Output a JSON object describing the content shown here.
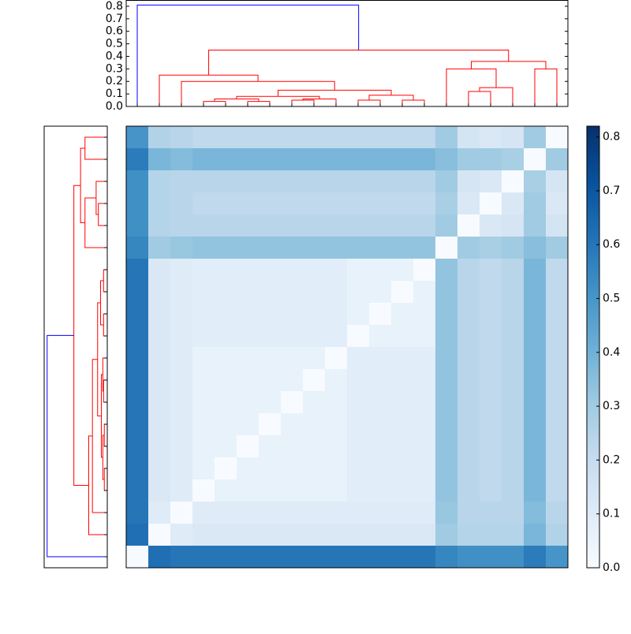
{
  "chart_data": {
    "type": "clustered-heatmap",
    "colormap": [
      "#f7fbff",
      "#deebf7",
      "#c6dbef",
      "#9ecae1",
      "#6baed6",
      "#4292c6",
      "#2171b5",
      "#08519c",
      "#08306b"
    ],
    "clim": [
      0,
      0.82
    ],
    "cticks": [
      {
        "value": 0,
        "label": "0.0"
      },
      {
        "value": 0.1,
        "label": "0.1"
      },
      {
        "value": 0.2,
        "label": "0.2"
      },
      {
        "value": 0.3,
        "label": "0.3"
      },
      {
        "value": 0.4,
        "label": "0.4"
      },
      {
        "value": 0.5,
        "label": "0.5"
      },
      {
        "value": 0.6,
        "label": "0.6"
      },
      {
        "value": 0.7,
        "label": "0.7"
      },
      {
        "value": 0.8,
        "label": "0.8"
      }
    ],
    "ylim": [
      0,
      0.85
    ],
    "yticks": [
      {
        "value": 0,
        "label": "0.0"
      },
      {
        "value": 0.1,
        "label": "0.1"
      },
      {
        "value": 0.2,
        "label": "0.2"
      },
      {
        "value": 0.3,
        "label": "0.3"
      },
      {
        "value": 0.4,
        "label": "0.4"
      },
      {
        "value": 0.5,
        "label": "0.5"
      },
      {
        "value": 0.6,
        "label": "0.6"
      },
      {
        "value": 0.7,
        "label": "0.7"
      },
      {
        "value": 0.8,
        "label": "0.8"
      }
    ],
    "matrix": [
      [
        0.5,
        0.26,
        0.24,
        0.22,
        0.22,
        0.22,
        0.22,
        0.22,
        0.22,
        0.22,
        0.22,
        0.22,
        0.22,
        0.22,
        0.3,
        0.15,
        0.12,
        0.14,
        0.3,
        0
      ],
      [
        0.58,
        0.38,
        0.36,
        0.38,
        0.38,
        0.38,
        0.38,
        0.38,
        0.38,
        0.38,
        0.38,
        0.38,
        0.38,
        0.38,
        0.35,
        0.3,
        0.3,
        0.28,
        0,
        0.3
      ],
      [
        0.52,
        0.25,
        0.24,
        0.24,
        0.24,
        0.24,
        0.24,
        0.24,
        0.24,
        0.24,
        0.24,
        0.24,
        0.24,
        0.24,
        0.3,
        0.14,
        0.12,
        0,
        0.28,
        0.14
      ],
      [
        0.52,
        0.25,
        0.24,
        0.22,
        0.22,
        0.22,
        0.22,
        0.22,
        0.22,
        0.22,
        0.22,
        0.22,
        0.22,
        0.22,
        0.28,
        0.12,
        0,
        0.12,
        0.3,
        0.12
      ],
      [
        0.52,
        0.25,
        0.24,
        0.24,
        0.24,
        0.24,
        0.24,
        0.24,
        0.24,
        0.24,
        0.24,
        0.24,
        0.24,
        0.24,
        0.3,
        0,
        0.12,
        0.14,
        0.3,
        0.15
      ],
      [
        0.55,
        0.3,
        0.32,
        0.33,
        0.33,
        0.33,
        0.33,
        0.33,
        0.33,
        0.33,
        0.33,
        0.33,
        0.33,
        0.33,
        0,
        0.3,
        0.28,
        0.3,
        0.35,
        0.3
      ],
      [
        0.6,
        0.12,
        0.1,
        0.09,
        0.09,
        0.09,
        0.09,
        0.09,
        0.09,
        0.09,
        0.06,
        0.06,
        0.06,
        0,
        0.33,
        0.24,
        0.22,
        0.24,
        0.38,
        0.22
      ],
      [
        0.6,
        0.12,
        0.1,
        0.09,
        0.09,
        0.09,
        0.09,
        0.09,
        0.09,
        0.09,
        0.06,
        0.06,
        0,
        0.06,
        0.33,
        0.24,
        0.22,
        0.24,
        0.38,
        0.22
      ],
      [
        0.6,
        0.12,
        0.1,
        0.09,
        0.09,
        0.09,
        0.09,
        0.09,
        0.09,
        0.09,
        0.06,
        0,
        0.06,
        0.06,
        0.33,
        0.24,
        0.22,
        0.24,
        0.38,
        0.22
      ],
      [
        0.6,
        0.12,
        0.1,
        0.09,
        0.09,
        0.09,
        0.09,
        0.09,
        0.09,
        0.09,
        0,
        0.06,
        0.06,
        0.06,
        0.33,
        0.24,
        0.22,
        0.24,
        0.38,
        0.22
      ],
      [
        0.6,
        0.12,
        0.1,
        0.06,
        0.06,
        0.06,
        0.06,
        0.06,
        0.06,
        0,
        0.09,
        0.09,
        0.09,
        0.09,
        0.33,
        0.24,
        0.22,
        0.24,
        0.38,
        0.22
      ],
      [
        0.6,
        0.12,
        0.1,
        0.06,
        0.06,
        0.06,
        0.06,
        0.06,
        0,
        0.06,
        0.09,
        0.09,
        0.09,
        0.09,
        0.33,
        0.24,
        0.22,
        0.24,
        0.38,
        0.22
      ],
      [
        0.6,
        0.12,
        0.1,
        0.06,
        0.06,
        0.06,
        0.06,
        0,
        0.06,
        0.06,
        0.09,
        0.09,
        0.09,
        0.09,
        0.33,
        0.24,
        0.22,
        0.24,
        0.38,
        0.22
      ],
      [
        0.6,
        0.12,
        0.1,
        0.06,
        0.06,
        0.06,
        0,
        0.06,
        0.06,
        0.06,
        0.09,
        0.09,
        0.09,
        0.09,
        0.33,
        0.24,
        0.22,
        0.24,
        0.38,
        0.22
      ],
      [
        0.6,
        0.12,
        0.1,
        0.06,
        0.06,
        0,
        0.06,
        0.06,
        0.06,
        0.06,
        0.09,
        0.09,
        0.09,
        0.09,
        0.33,
        0.24,
        0.22,
        0.24,
        0.38,
        0.22
      ],
      [
        0.6,
        0.12,
        0.1,
        0.06,
        0,
        0.06,
        0.06,
        0.06,
        0.06,
        0.06,
        0.09,
        0.09,
        0.09,
        0.09,
        0.33,
        0.24,
        0.22,
        0.24,
        0.38,
        0.22
      ],
      [
        0.6,
        0.12,
        0.1,
        0,
        0.06,
        0.06,
        0.06,
        0.06,
        0.06,
        0.06,
        0.09,
        0.09,
        0.09,
        0.09,
        0.33,
        0.24,
        0.22,
        0.24,
        0.38,
        0.22
      ],
      [
        0.6,
        0.1,
        0,
        0.1,
        0.1,
        0.1,
        0.1,
        0.1,
        0.1,
        0.1,
        0.1,
        0.1,
        0.1,
        0.1,
        0.32,
        0.24,
        0.24,
        0.24,
        0.36,
        0.24
      ],
      [
        0.62,
        0,
        0.1,
        0.12,
        0.12,
        0.12,
        0.12,
        0.12,
        0.12,
        0.12,
        0.12,
        0.12,
        0.12,
        0.12,
        0.3,
        0.25,
        0.25,
        0.25,
        0.38,
        0.26
      ],
      [
        0,
        0.62,
        0.6,
        0.6,
        0.6,
        0.6,
        0.6,
        0.6,
        0.6,
        0.6,
        0.6,
        0.6,
        0.6,
        0.6,
        0.55,
        0.52,
        0.52,
        0.52,
        0.58,
        0.5
      ]
    ],
    "dendrogram": {
      "links": [
        {
          "children": [
            3,
            4
          ],
          "height": 0.04,
          "color": "#ff0000"
        },
        {
          "children": [
            5,
            6
          ],
          "height": 0.04,
          "color": "#ff0000"
        },
        {
          "children": [
            7,
            8
          ],
          "height": 0.05,
          "color": "#ff0000"
        },
        {
          "children": [
            20,
            21
          ],
          "height": 0.06,
          "color": "#ff0000"
        },
        {
          "children": [
            22,
            9
          ],
          "height": 0.06,
          "color": "#ff0000"
        },
        {
          "children": [
            23,
            24
          ],
          "height": 0.08,
          "color": "#ff0000"
        },
        {
          "children": [
            10,
            11
          ],
          "height": 0.05,
          "color": "#ff0000"
        },
        {
          "children": [
            12,
            13
          ],
          "height": 0.05,
          "color": "#ff0000"
        },
        {
          "children": [
            26,
            27
          ],
          "height": 0.09,
          "color": "#ff0000"
        },
        {
          "children": [
            25,
            28
          ],
          "height": 0.13,
          "color": "#ff0000"
        },
        {
          "children": [
            2,
            29
          ],
          "height": 0.2,
          "color": "#ff0000"
        },
        {
          "children": [
            1,
            30
          ],
          "height": 0.25,
          "color": "#ff0000"
        },
        {
          "children": [
            15,
            16
          ],
          "height": 0.12,
          "color": "#ff0000"
        },
        {
          "children": [
            32,
            17
          ],
          "height": 0.15,
          "color": "#ff0000"
        },
        {
          "children": [
            14,
            33
          ],
          "height": 0.3,
          "color": "#ff0000"
        },
        {
          "children": [
            18,
            19
          ],
          "height": 0.3,
          "color": "#ff0000"
        },
        {
          "children": [
            34,
            35
          ],
          "height": 0.36,
          "color": "#ff0000"
        },
        {
          "children": [
            31,
            36
          ],
          "height": 0.45,
          "color": "#ff0000"
        },
        {
          "children": [
            0,
            37
          ],
          "height": 0.81,
          "color": "#0000ff"
        }
      ]
    }
  }
}
